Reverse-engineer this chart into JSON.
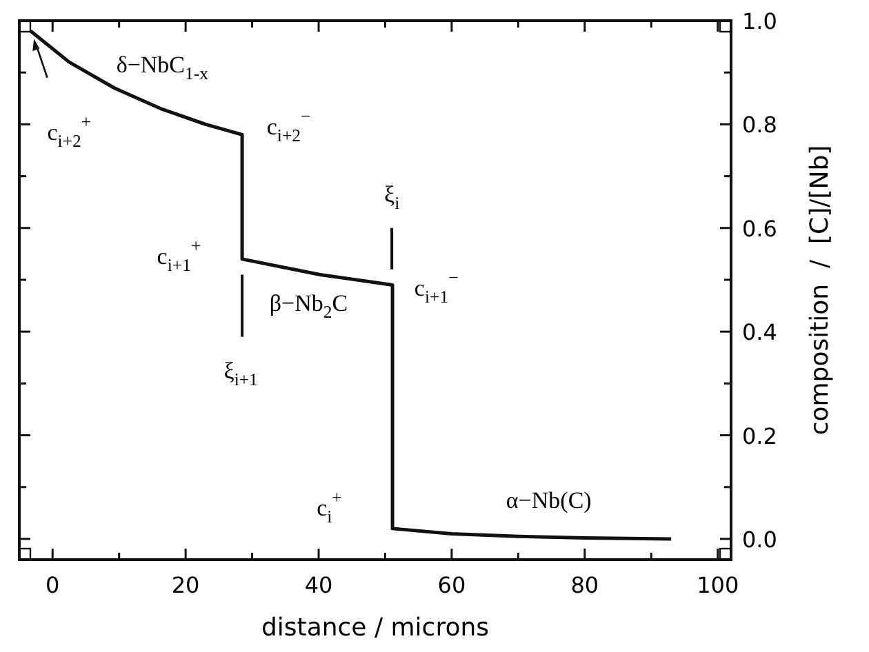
{
  "chart_data": {
    "type": "line",
    "xlabel": "distance / microns",
    "ylabel": "composition  /  [C]/[Nb]",
    "xlim": [
      -5,
      102
    ],
    "ylim": [
      -0.04,
      1.0
    ],
    "xticks": [
      0,
      {
        "value": 10,
        "label": null
      },
      20,
      {
        "value": 30,
        "label": null
      },
      40,
      {
        "value": 50,
        "label": null
      },
      60,
      {
        "value": 70,
        "label": null
      },
      80,
      {
        "value": 90,
        "label": null
      },
      100
    ],
    "yticks": [
      {
        "value": 0,
        "label": "0.0"
      },
      {
        "value": 0.1,
        "label": null
      },
      {
        "value": 0.2,
        "label": "0.2"
      },
      {
        "value": 0.3,
        "label": null
      },
      {
        "value": 0.4,
        "label": "0.4"
      },
      {
        "value": 0.5,
        "label": null
      },
      {
        "value": 0.6,
        "label": "0.6"
      },
      {
        "value": 0.7,
        "label": null
      },
      {
        "value": 0.8,
        "label": "0.8"
      },
      {
        "value": 0.9,
        "label": null
      },
      {
        "value": 1.0,
        "label": "1.0"
      }
    ],
    "series": [
      {
        "color": "#111111",
        "x": [
          -3.3,
          2.5,
          9.3,
          16.3,
          23,
          28.5,
          28.5,
          40.2,
          51.1,
          51.1,
          60,
          70,
          80,
          93
        ],
        "values": [
          0.98,
          0.92,
          0.87,
          0.83,
          0.8,
          0.78,
          0.54,
          0.51,
          0.49,
          0.02,
          0.01,
          0.005,
          0.002,
          0.0
        ]
      }
    ],
    "annotations": [
      "δ−NbC$_{1-x}$",
      "c$_{i+2}$$^{+}$",
      "c$_{i+2}$$^{−}$",
      "ξ$_{i}$",
      "c$_{i+1}$$^{+}$",
      "c$_{i+1}$$^{−}$",
      "β−Nb$_{2}$C",
      "ξ$_{i+1}$",
      "c$_{i}$$^{+}$",
      "α−Nb(C)"
    ],
    "tick_labels": "xy",
    "marker": "none",
    "line_style": "solid"
  }
}
